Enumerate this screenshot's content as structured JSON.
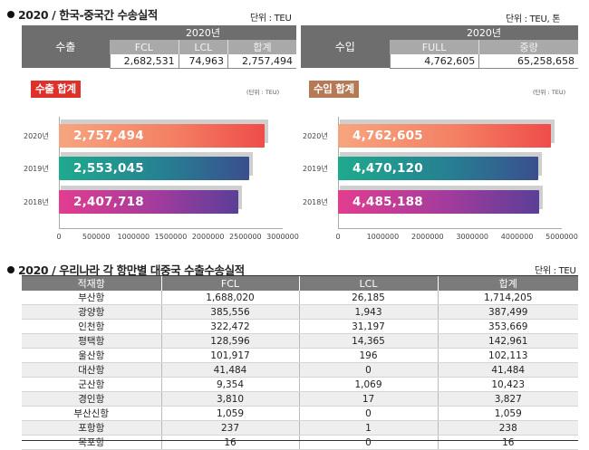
{
  "section1": {
    "title": "2020 / 한국-중국간 수송실적"
  },
  "export_table": {
    "unit": "단위 : TEU",
    "row_label": "수출",
    "year": "2020년",
    "columns": [
      "FCL",
      "LCL",
      "합계"
    ],
    "values": [
      "2,682,531",
      "74,963",
      "2,757,494"
    ]
  },
  "import_table": {
    "unit": "단위 : TEU, 톤",
    "row_label": "수입",
    "year": "2020년",
    "columns": [
      "FULL",
      "중량"
    ],
    "values": [
      "4,762,605",
      "65,258,658"
    ]
  },
  "export_chart": {
    "badge": "수출 합계",
    "unit": "(단위 : TEU)",
    "colors": {
      "badge": "#e0302c"
    }
  },
  "import_chart": {
    "badge": "수입 합계",
    "unit": "(단위 : TEU)",
    "colors": {
      "badge": "#b57a55"
    }
  },
  "chart_data": [
    {
      "type": "bar",
      "orientation": "horizontal",
      "title": "수출 합계",
      "unit": "TEU",
      "categories": [
        "2020년",
        "2019년",
        "2018년"
      ],
      "values": [
        2757494,
        2553045,
        2407718
      ],
      "labels": [
        "2,757,494",
        "2,553,045",
        "2,407,718"
      ],
      "xlim": [
        0,
        3000000
      ],
      "xticks": [
        0,
        500000,
        1000000,
        1500000,
        2000000,
        2500000,
        3000000
      ],
      "xtick_labels": [
        "0",
        "500000",
        "1000000",
        "1500000",
        "2000000",
        "2500000",
        "3000000"
      ]
    },
    {
      "type": "bar",
      "orientation": "horizontal",
      "title": "수입 합계",
      "unit": "TEU",
      "categories": [
        "2020년",
        "2019년",
        "2018년"
      ],
      "values": [
        4762605,
        4470120,
        4485188
      ],
      "labels": [
        "4,762,605",
        "4,470,120",
        "4,485,188"
      ],
      "xlim": [
        0,
        5000000
      ],
      "xticks": [
        0,
        1000000,
        2000000,
        3000000,
        4000000,
        5000000
      ],
      "xtick_labels": [
        "0",
        "1000000",
        "2000000",
        "3000000",
        "4000000",
        "5000000"
      ]
    }
  ],
  "section2": {
    "title": "2020 / 우리나라 각 항만별 대중국 수출수송실적",
    "unit": "단위 : TEU"
  },
  "ports_table": {
    "headers": [
      "적재항",
      "FCL",
      "LCL",
      "합계"
    ],
    "rows": [
      [
        "부산항",
        "1,688,020",
        "26,185",
        "1,714,205"
      ],
      [
        "광양항",
        "385,556",
        "1,943",
        "387,499"
      ],
      [
        "인천항",
        "322,472",
        "31,197",
        "353,669"
      ],
      [
        "평택항",
        "128,596",
        "14,365",
        "142,961"
      ],
      [
        "울산항",
        "101,917",
        "196",
        "102,113"
      ],
      [
        "대산항",
        "41,484",
        "0",
        "41,484"
      ],
      [
        "군산항",
        "9,354",
        "1,069",
        "10,423"
      ],
      [
        "경인항",
        "3,810",
        "17",
        "3,827"
      ],
      [
        "부산신항",
        "1,059",
        "0",
        "1,059"
      ],
      [
        "포항항",
        "237",
        "1",
        "238"
      ],
      [
        "목포항",
        "16",
        "0",
        "16"
      ]
    ]
  }
}
